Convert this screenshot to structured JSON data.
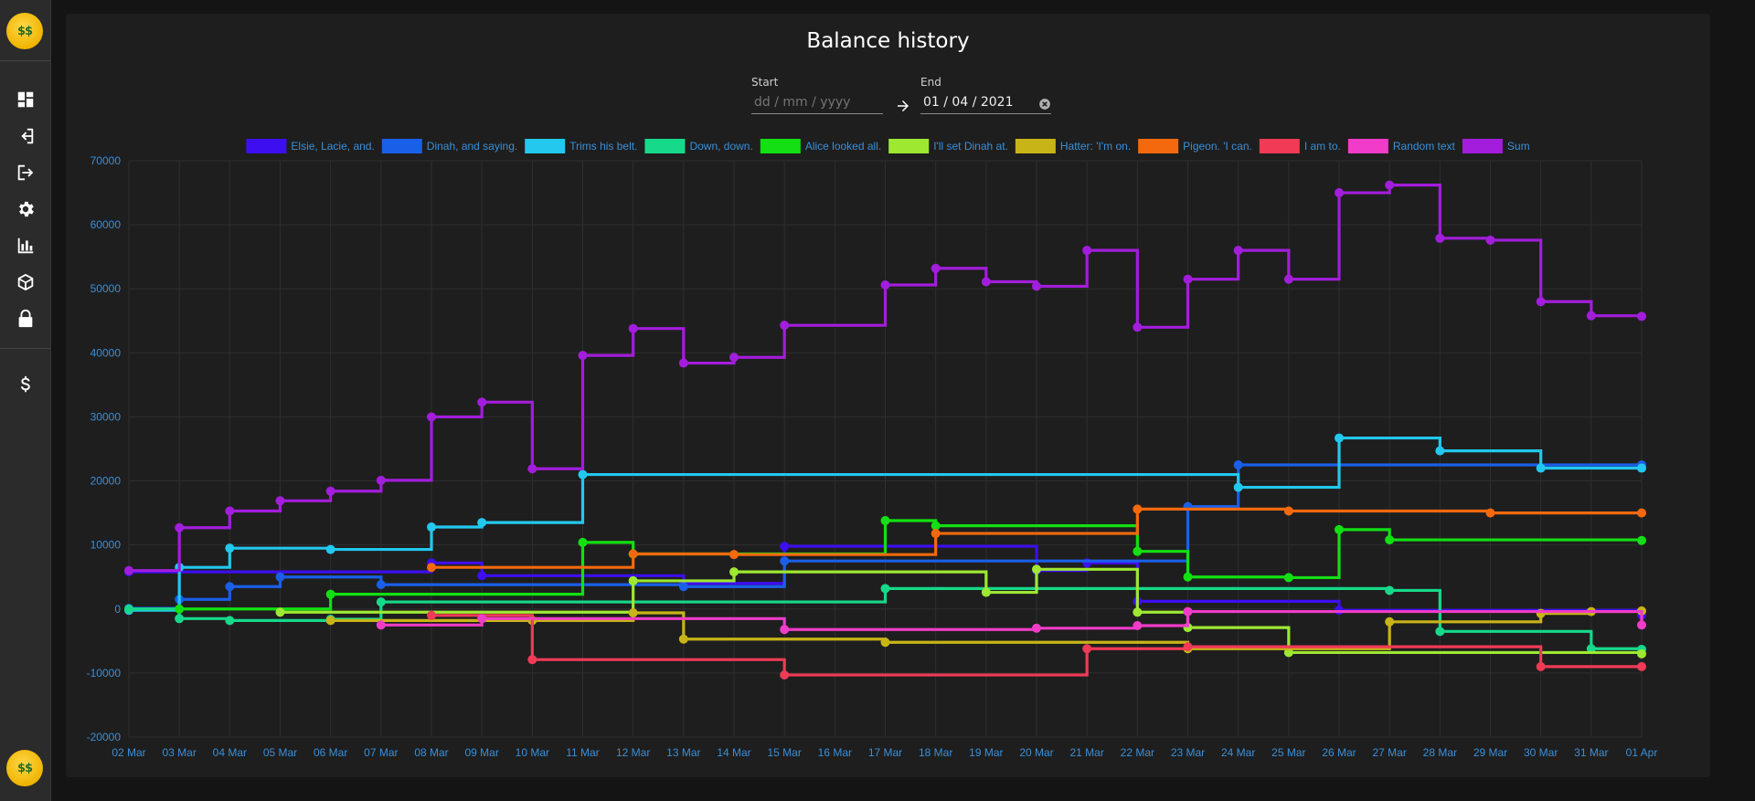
{
  "sidebar": {
    "logo_icon": "money-face-icon",
    "logo_text": "$$",
    "items": [
      {
        "icon": "dashboard-icon"
      },
      {
        "icon": "login-icon"
      },
      {
        "icon": "logout-icon"
      },
      {
        "icon": "gear-icon"
      },
      {
        "icon": "bar-chart-icon"
      },
      {
        "icon": "cube-icon"
      },
      {
        "icon": "lock-icon"
      },
      {
        "icon": "dollar-icon"
      }
    ]
  },
  "page": {
    "title": "Balance history"
  },
  "date_range": {
    "start_label": "Start",
    "start_placeholder": "dd / mm / yyyy",
    "start_value": "",
    "end_label": "End",
    "end_value": "01 / 04 / 2021"
  },
  "chart_data": {
    "type": "line",
    "step": true,
    "categories": [
      "02 Mar",
      "03 Mar",
      "04 Mar",
      "05 Mar",
      "06 Mar",
      "07 Mar",
      "08 Mar",
      "09 Mar",
      "10 Mar",
      "11 Mar",
      "12 Mar",
      "13 Mar",
      "14 Mar",
      "15 Mar",
      "16 Mar",
      "17 Mar",
      "18 Mar",
      "19 Mar",
      "20 Mar",
      "21 Mar",
      "22 Mar",
      "23 Mar",
      "24 Mar",
      "25 Mar",
      "26 Mar",
      "27 Mar",
      "28 Mar",
      "29 Mar",
      "30 Mar",
      "31 Mar",
      "01 Apr"
    ],
    "ylim": [
      -20000,
      70000
    ],
    "yticks": [
      70000,
      60000,
      50000,
      40000,
      30000,
      20000,
      10000,
      0,
      -10000,
      -20000
    ],
    "legend_position": "top",
    "grid": true,
    "series": [
      {
        "name": "Elsie, Lacie, and.",
        "color": "#3d0ef0",
        "points": [
          [
            0,
            5800
          ],
          [
            6,
            7200
          ],
          [
            7,
            5200
          ],
          [
            11,
            4000
          ],
          [
            13,
            9800
          ],
          [
            18,
            6000
          ],
          [
            19,
            7200
          ],
          [
            20,
            1200
          ],
          [
            24,
            -200
          ],
          [
            30,
            -1000
          ]
        ]
      },
      {
        "name": "Dinah, and saying.",
        "color": "#1a5fe8",
        "points": [
          [
            0,
            100
          ],
          [
            1,
            1500
          ],
          [
            2,
            3500
          ],
          [
            3,
            5000
          ],
          [
            5,
            3800
          ],
          [
            11,
            3500
          ],
          [
            13,
            7500
          ],
          [
            21,
            16000
          ],
          [
            22,
            22500
          ],
          [
            30,
            22500
          ]
        ]
      },
      {
        "name": "Trims his belt.",
        "color": "#22c8ee",
        "points": [
          [
            0,
            -200
          ],
          [
            1,
            6500
          ],
          [
            2,
            9500
          ],
          [
            4,
            9300
          ],
          [
            6,
            12800
          ],
          [
            7,
            13500
          ],
          [
            9,
            21000
          ],
          [
            22,
            19000
          ],
          [
            24,
            26700
          ],
          [
            26,
            24700
          ],
          [
            28,
            22000
          ],
          [
            30,
            22000
          ]
        ]
      },
      {
        "name": "Down, down.",
        "color": "#16d98a",
        "points": [
          [
            0,
            0
          ],
          [
            1,
            -1500
          ],
          [
            2,
            -1800
          ],
          [
            4,
            -1600
          ],
          [
            5,
            1100
          ],
          [
            15,
            3200
          ],
          [
            25,
            2900
          ],
          [
            26,
            -3500
          ],
          [
            29,
            -6200
          ],
          [
            30,
            -6300
          ]
        ]
      },
      {
        "name": "Alice looked all.",
        "color": "#12e012",
        "points": [
          [
            1,
            0
          ],
          [
            4,
            2300
          ],
          [
            9,
            10400
          ],
          [
            10,
            8600
          ],
          [
            15,
            13800
          ],
          [
            16,
            13000
          ],
          [
            20,
            9000
          ],
          [
            21,
            5000
          ],
          [
            23,
            4900
          ],
          [
            24,
            12400
          ],
          [
            25,
            10800
          ],
          [
            30,
            10700
          ]
        ]
      },
      {
        "name": "I'll set Dinah at.",
        "color": "#9ee832",
        "points": [
          [
            3,
            -500
          ],
          [
            10,
            4400
          ],
          [
            12,
            5800
          ],
          [
            17,
            2600
          ],
          [
            18,
            6200
          ],
          [
            20,
            -500
          ],
          [
            21,
            -2900
          ],
          [
            23,
            -6800
          ],
          [
            30,
            -7000
          ]
        ]
      },
      {
        "name": "Hatter: 'I'm on.",
        "color": "#c8b416",
        "points": [
          [
            4,
            -1800
          ],
          [
            8,
            -1800
          ],
          [
            10,
            -600
          ],
          [
            11,
            -4700
          ],
          [
            15,
            -5200
          ],
          [
            21,
            -6200
          ],
          [
            25,
            -2000
          ],
          [
            28,
            -700
          ],
          [
            29,
            -400
          ],
          [
            30,
            -300
          ]
        ]
      },
      {
        "name": "Pigeon. 'I can.",
        "color": "#f4690d",
        "points": [
          [
            6,
            6500
          ],
          [
            10,
            8600
          ],
          [
            12,
            8500
          ],
          [
            16,
            11800
          ],
          [
            20,
            15600
          ],
          [
            23,
            15300
          ],
          [
            27,
            15000
          ],
          [
            30,
            15000
          ]
        ]
      },
      {
        "name": "I am to.",
        "color": "#f03a56",
        "points": [
          [
            6,
            -1000
          ],
          [
            8,
            -7900
          ],
          [
            13,
            -10300
          ],
          [
            19,
            -6200
          ],
          [
            21,
            -5900
          ],
          [
            28,
            -9000
          ],
          [
            30,
            -9000
          ]
        ]
      },
      {
        "name": "Random text",
        "color": "#f03cc8",
        "points": [
          [
            5,
            -2500
          ],
          [
            7,
            -1500
          ],
          [
            13,
            -3200
          ],
          [
            18,
            -3000
          ],
          [
            20,
            -2600
          ],
          [
            21,
            -400
          ],
          [
            30,
            -2500
          ]
        ]
      },
      {
        "name": "Sum",
        "color": "#a31ddc",
        "points": [
          [
            0,
            6000
          ],
          [
            1,
            12700
          ],
          [
            2,
            15300
          ],
          [
            3,
            16900
          ],
          [
            4,
            18400
          ],
          [
            5,
            20100
          ],
          [
            6,
            30000
          ],
          [
            7,
            32300
          ],
          [
            8,
            21900
          ],
          [
            9,
            39600
          ],
          [
            10,
            43800
          ],
          [
            11,
            38400
          ],
          [
            12,
            39300
          ],
          [
            13,
            44300
          ],
          [
            15,
            50600
          ],
          [
            16,
            53200
          ],
          [
            17,
            51100
          ],
          [
            18,
            50400
          ],
          [
            19,
            56000
          ],
          [
            20,
            44000
          ],
          [
            21,
            51500
          ],
          [
            22,
            56000
          ],
          [
            23,
            51500
          ],
          [
            24,
            65000
          ],
          [
            25,
            66200
          ],
          [
            26,
            57900
          ],
          [
            27,
            57600
          ],
          [
            28,
            48000
          ],
          [
            29,
            45800
          ],
          [
            30,
            45700
          ]
        ]
      }
    ]
  }
}
